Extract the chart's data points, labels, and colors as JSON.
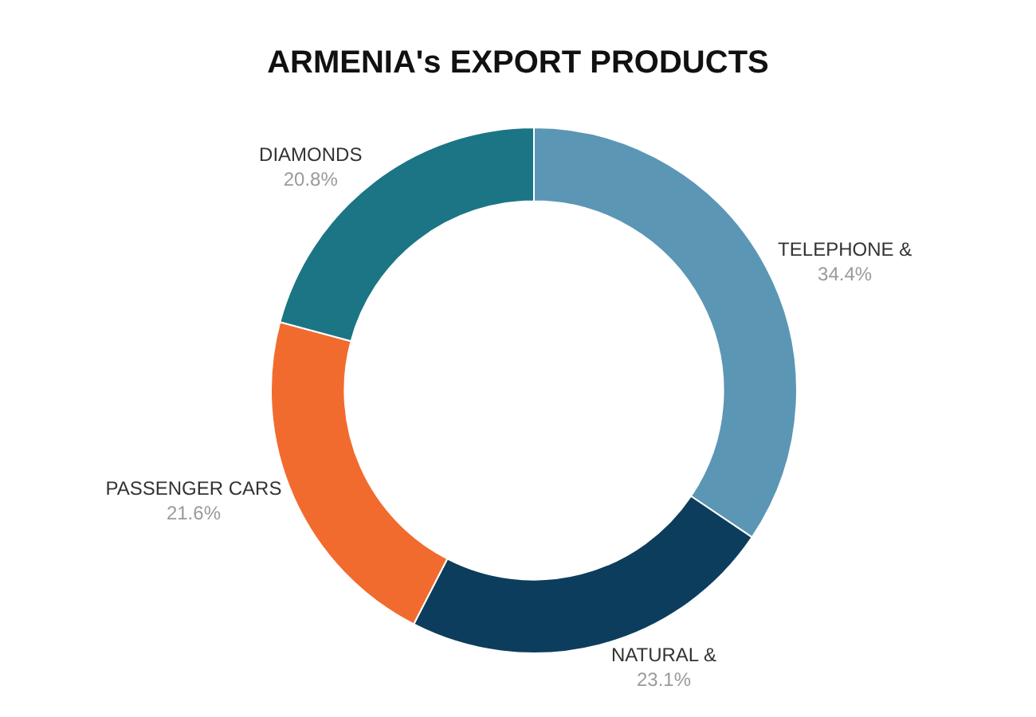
{
  "chart_data": {
    "type": "donut",
    "title": "ARMENIA's EXPORT PRODUCTS",
    "categories": [
      "TELEPHONE &",
      "NATURAL &",
      "PASSENGER CARS",
      "DIAMONDS"
    ],
    "values": [
      34.4,
      23.1,
      21.6,
      20.8
    ],
    "value_labels": [
      "34.4%",
      "23.1%",
      "21.6%",
      "20.8%"
    ],
    "colors": [
      "#5b96b5",
      "#0d3d5c",
      "#f26b2e",
      "#1b7585"
    ],
    "legend": false
  }
}
